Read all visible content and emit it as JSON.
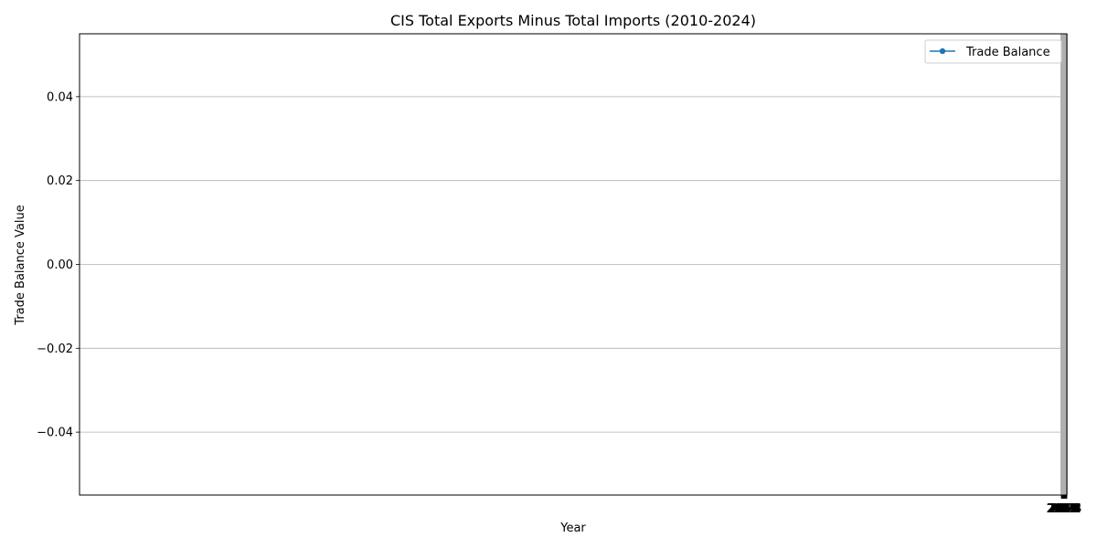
{
  "chart_data": {
    "type": "line",
    "title": "CIS Total Exports Minus Total Imports (2010-2024)",
    "xlabel": "Year",
    "ylabel": "Trade Balance Value",
    "x": [
      2010,
      2011,
      2012,
      2013,
      2014,
      2015,
      2016,
      2017,
      2018,
      2019,
      2020,
      2021,
      2022,
      2023,
      2024
    ],
    "series": [
      {
        "name": "Trade Balance",
        "values": [
          null,
          null,
          null,
          null,
          null,
          null,
          null,
          null,
          null,
          null,
          null,
          null,
          null,
          null,
          null
        ]
      }
    ],
    "ylim": [
      -0.055,
      0.055
    ],
    "yticks": [
      -0.04,
      -0.02,
      0.0,
      0.02,
      0.04
    ],
    "ytick_labels": [
      "−0.04",
      "−0.02",
      "0.00",
      "0.02",
      "0.04"
    ],
    "grid": "y",
    "legend_position": "upper-right",
    "series_color": "#1f77b4"
  }
}
